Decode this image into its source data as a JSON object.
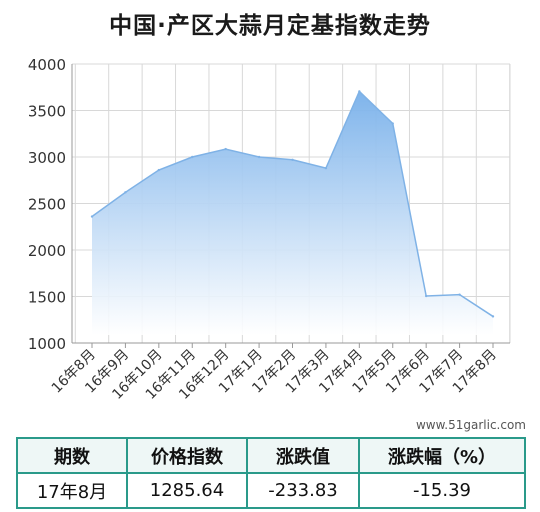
{
  "title": "中国·产区大蒜月定基指数走势",
  "watermark": "www.51garlic.com",
  "colors": {
    "line": "#7fb2e6",
    "fill_top": "#7ab2ea",
    "fill_bottom": "#ffffff",
    "grid": "#d8d8d8",
    "table_border": "#2a9a8a"
  },
  "chart_data": {
    "type": "area",
    "categories": [
      "16年8月",
      "16年9月",
      "16年10月",
      "16年11月",
      "16年12月",
      "17年1月",
      "17年2月",
      "17年3月",
      "17年4月",
      "17年5月",
      "17年6月",
      "17年7月",
      "17年8月"
    ],
    "x_ticks": [
      "16年8月",
      "16年9月",
      "16年10月",
      "16年11月",
      "16年12月",
      "17年1月",
      "17年2月",
      "17年3月",
      "17年4月",
      "17年5月",
      "17年6月",
      "17年7月",
      "17年8月"
    ],
    "values": [
      2360,
      2620,
      2860,
      3000,
      3085,
      3000,
      2970,
      2880,
      3705,
      3360,
      1505,
      1520,
      1285.64
    ],
    "ylim": [
      1000,
      4000
    ],
    "yticks": [
      1000,
      1500,
      2000,
      2500,
      3000,
      3500,
      4000
    ],
    "xlabel": "",
    "ylabel": "",
    "grid": true
  },
  "table": {
    "headers": [
      "期数",
      "价格指数",
      "涨跌值",
      "涨跌幅（%）"
    ],
    "row": [
      "17年8月",
      "1285.64",
      "-233.83",
      "-15.39"
    ]
  }
}
